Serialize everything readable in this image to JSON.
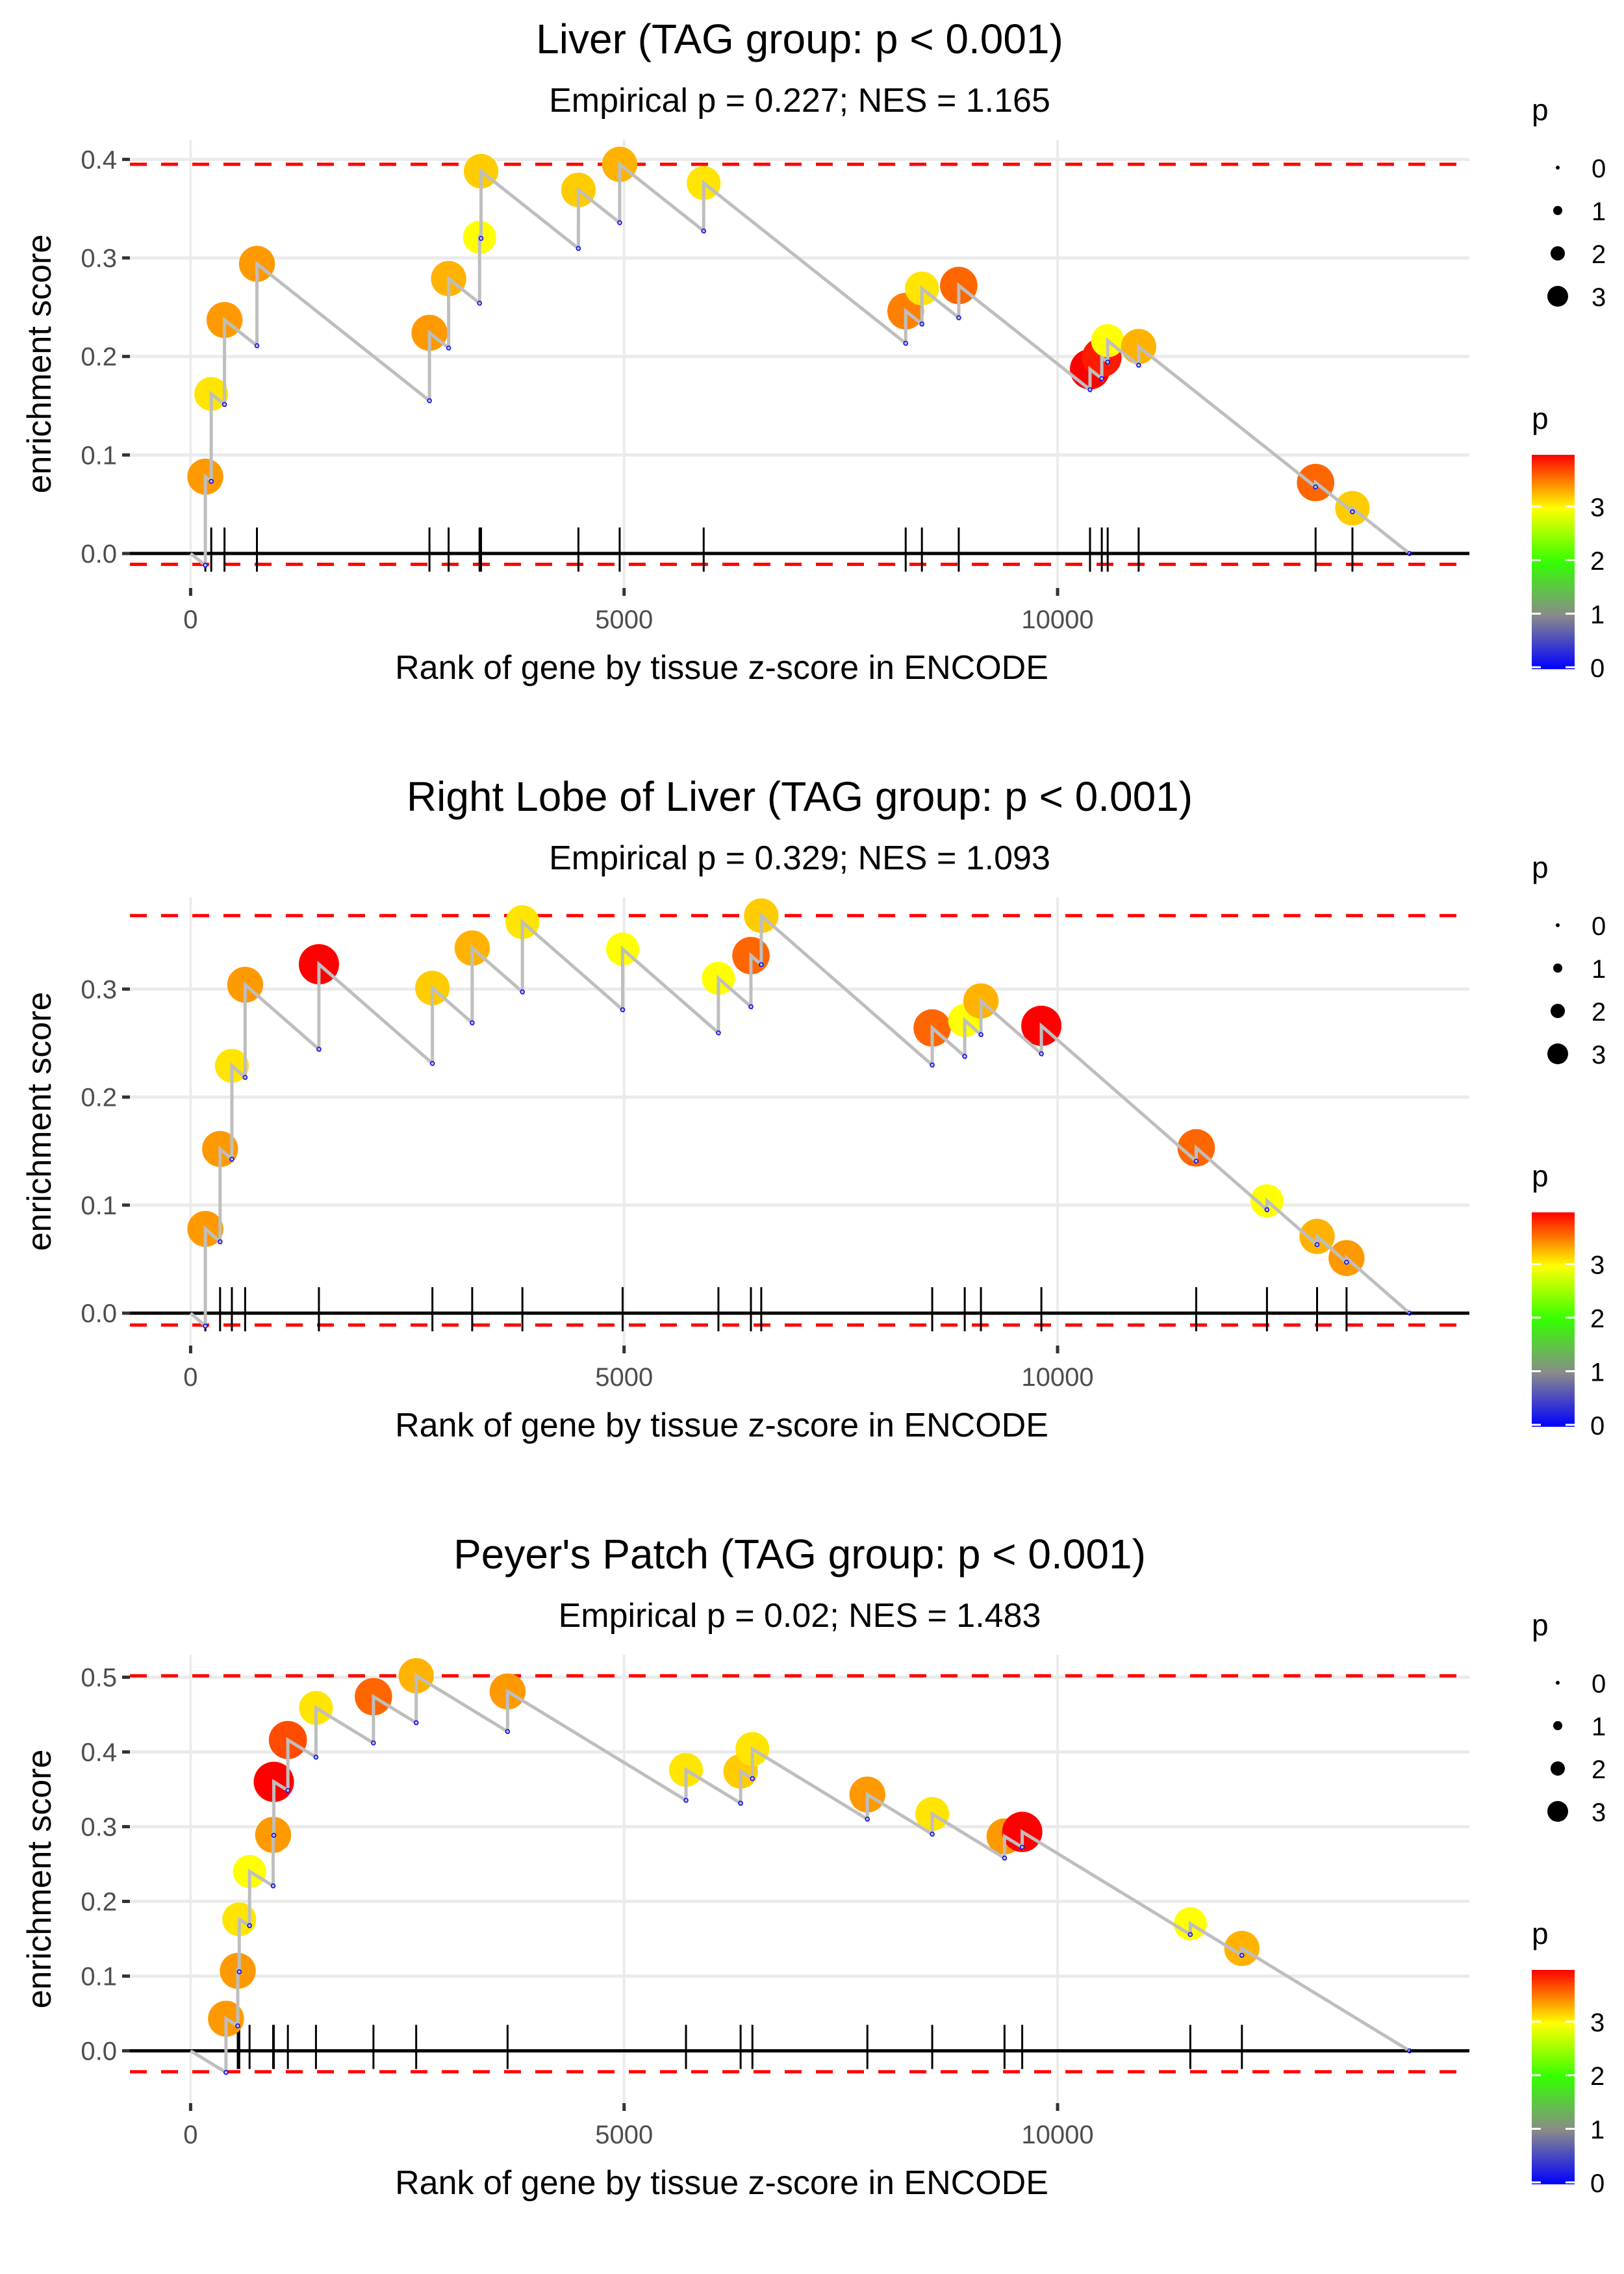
{
  "chart_data": [
    {
      "type": "line",
      "title": "Liver (TAG group: p < 0.001)",
      "subtitle": "Empirical p = 0.227; NES = 1.165",
      "xlabel": "Rank of gene by tissue z-score in ENCODE",
      "ylabel": "enrichment score",
      "xlim": [
        -700,
        14750
      ],
      "ylim": [
        -0.035,
        0.42
      ],
      "x_ticks": [
        0,
        5000,
        10000
      ],
      "x_tick_labels": [
        "0",
        "5000",
        "10000"
      ],
      "y_ticks": [
        0.0,
        0.1,
        0.2,
        0.3,
        0.4
      ],
      "y_tick_labels": [
        "0.0",
        "0.1",
        "0.2",
        "0.3",
        "0.4"
      ],
      "max_es_line": 0.395,
      "min_es_line": -0.011,
      "n_genes": 14060,
      "grid": true,
      "hits": [
        {
          "rank": 170,
          "es": 0.078,
          "p": 3.4
        },
        {
          "rank": 238,
          "es": 0.162,
          "p": 3.1
        },
        {
          "rank": 391,
          "es": 0.237,
          "p": 3.4
        },
        {
          "rank": 765,
          "es": 0.294,
          "p": 3.4
        },
        {
          "rank": 2755,
          "es": 0.224,
          "p": 3.4
        },
        {
          "rank": 2976,
          "es": 0.279,
          "p": 3.3
        },
        {
          "rank": 3333,
          "es": 0.321,
          "p": 3.0
        },
        {
          "rank": 3350,
          "es": 0.388,
          "p": 3.2
        },
        {
          "rank": 4473,
          "es": 0.369,
          "p": 3.2
        },
        {
          "rank": 4949,
          "es": 0.395,
          "p": 3.3
        },
        {
          "rank": 5918,
          "es": 0.376,
          "p": 3.1
        },
        {
          "rank": 8248,
          "es": 0.246,
          "p": 3.5
        },
        {
          "rank": 8435,
          "es": 0.269,
          "p": 3.1
        },
        {
          "rank": 8860,
          "es": 0.272,
          "p": 3.6
        },
        {
          "rank": 10374,
          "es": 0.187,
          "p": 4.0
        },
        {
          "rank": 10510,
          "es": 0.199,
          "p": 3.9
        },
        {
          "rank": 10578,
          "es": 0.216,
          "p": 3.0
        },
        {
          "rank": 10935,
          "es": 0.21,
          "p": 3.3
        },
        {
          "rank": 12976,
          "es": 0.072,
          "p": 3.6
        },
        {
          "rank": 13401,
          "es": 0.046,
          "p": 3.2
        }
      ]
    },
    {
      "type": "line",
      "title": "Right Lobe of Liver (TAG group: p < 0.001)",
      "subtitle": "Empirical p = 0.329; NES = 1.093",
      "xlabel": "Rank of gene by tissue z-score in ENCODE",
      "ylabel": "enrichment score",
      "xlim": [
        -700,
        14750
      ],
      "ylim": [
        -0.03,
        0.385
      ],
      "x_ticks": [
        0,
        5000,
        10000
      ],
      "x_tick_labels": [
        "0",
        "5000",
        "10000"
      ],
      "y_ticks": [
        0.0,
        0.1,
        0.2,
        0.3
      ],
      "y_tick_labels": [
        "0.0",
        "0.1",
        "0.2",
        "0.3"
      ],
      "max_es_line": 0.368,
      "min_es_line": -0.011,
      "n_genes": 14060,
      "grid": true,
      "hits": [
        {
          "rank": 170,
          "es": 0.078,
          "p": 3.4
        },
        {
          "rank": 340,
          "es": 0.152,
          "p": 3.4
        },
        {
          "rank": 476,
          "es": 0.229,
          "p": 3.1
        },
        {
          "rank": 629,
          "es": 0.304,
          "p": 3.4
        },
        {
          "rank": 1480,
          "es": 0.323,
          "p": 4.0
        },
        {
          "rank": 2789,
          "es": 0.301,
          "p": 3.2
        },
        {
          "rank": 3248,
          "es": 0.338,
          "p": 3.3
        },
        {
          "rank": 3827,
          "es": 0.362,
          "p": 3.1
        },
        {
          "rank": 4983,
          "es": 0.337,
          "p": 3.0
        },
        {
          "rank": 6088,
          "es": 0.31,
          "p": 3.0
        },
        {
          "rank": 6463,
          "es": 0.331,
          "p": 3.6
        },
        {
          "rank": 6582,
          "es": 0.368,
          "p": 3.2
        },
        {
          "rank": 8554,
          "es": 0.264,
          "p": 3.6
        },
        {
          "rank": 8929,
          "es": 0.271,
          "p": 3.0
        },
        {
          "rank": 9116,
          "es": 0.289,
          "p": 3.3
        },
        {
          "rank": 9813,
          "es": 0.266,
          "p": 4.0
        },
        {
          "rank": 11599,
          "es": 0.153,
          "p": 3.6
        },
        {
          "rank": 12415,
          "es": 0.104,
          "p": 3.0
        },
        {
          "rank": 12993,
          "es": 0.071,
          "p": 3.3
        },
        {
          "rank": 13333,
          "es": 0.051,
          "p": 3.4
        }
      ]
    },
    {
      "type": "line",
      "title": "Peyer's Patch (TAG group: p < 0.001)",
      "subtitle": "Empirical p = 0.02; NES = 1.483",
      "xlabel": "Rank of gene by tissue z-score in ENCODE",
      "ylabel": "enrichment score",
      "xlim": [
        -700,
        14750
      ],
      "ylim": [
        -0.07,
        0.53
      ],
      "x_ticks": [
        0,
        5000,
        10000
      ],
      "x_tick_labels": [
        "0",
        "5000",
        "10000"
      ],
      "y_ticks": [
        0.0,
        0.1,
        0.2,
        0.3,
        0.4,
        0.5
      ],
      "y_tick_labels": [
        "0.0",
        "0.1",
        "0.2",
        "0.3",
        "0.4",
        "0.5"
      ],
      "max_es_line": 0.502,
      "min_es_line": -0.028,
      "n_genes": 14060,
      "grid": true,
      "hits": [
        {
          "rank": 408,
          "es": 0.043,
          "p": 3.4
        },
        {
          "rank": 544,
          "es": 0.107,
          "p": 3.4
        },
        {
          "rank": 561,
          "es": 0.176,
          "p": 3.1
        },
        {
          "rank": 680,
          "es": 0.24,
          "p": 3.0
        },
        {
          "rank": 952,
          "es": 0.289,
          "p": 3.4
        },
        {
          "rank": 960,
          "es": 0.36,
          "p": 4.0
        },
        {
          "rank": 1122,
          "es": 0.416,
          "p": 3.7
        },
        {
          "rank": 1446,
          "es": 0.459,
          "p": 3.1
        },
        {
          "rank": 2109,
          "es": 0.474,
          "p": 3.6
        },
        {
          "rank": 2602,
          "es": 0.502,
          "p": 3.3
        },
        {
          "rank": 3656,
          "es": 0.481,
          "p": 3.4
        },
        {
          "rank": 5714,
          "es": 0.376,
          "p": 3.1
        },
        {
          "rank": 6344,
          "es": 0.374,
          "p": 3.2
        },
        {
          "rank": 6480,
          "es": 0.404,
          "p": 3.1
        },
        {
          "rank": 7806,
          "es": 0.343,
          "p": 3.4
        },
        {
          "rank": 8554,
          "es": 0.317,
          "p": 3.1
        },
        {
          "rank": 9388,
          "es": 0.287,
          "p": 3.4
        },
        {
          "rank": 9592,
          "es": 0.293,
          "p": 4.0
        },
        {
          "rank": 11531,
          "es": 0.17,
          "p": 3.0
        },
        {
          "rank": 12126,
          "es": 0.137,
          "p": 3.3
        }
      ]
    }
  ],
  "legend": {
    "size_title": "p",
    "size_labels": [
      "0",
      "1",
      "2",
      "3"
    ],
    "color_title": "p",
    "color_labels": [
      "0",
      "1",
      "2",
      "3"
    ],
    "color_range": [
      0,
      4
    ],
    "color_stops": [
      "#0000ff",
      "#8a8a8a",
      "#33ff00",
      "#ffff00",
      "#ff0000"
    ]
  },
  "colors": {
    "curve": "#bebebe",
    "dashed_line": "#ff0000",
    "baseline": "#000000",
    "grid": "#ebebeb"
  }
}
